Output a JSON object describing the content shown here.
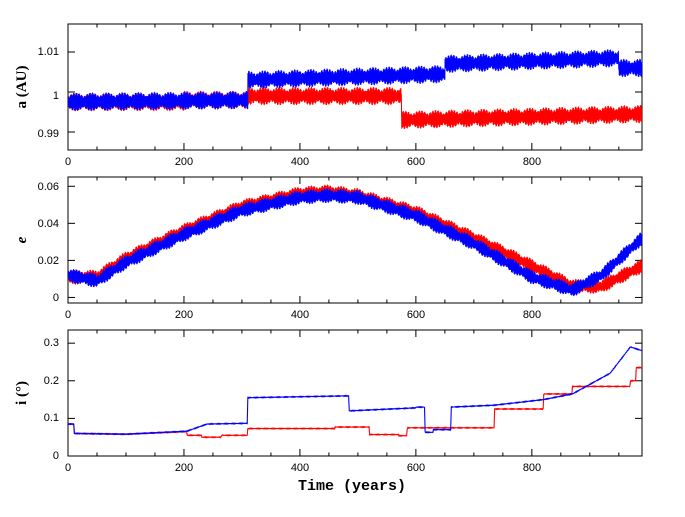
{
  "chart_data": [
    {
      "type": "line",
      "ylabel": "a (AU)",
      "ylim": [
        0.9855,
        1.017
      ],
      "xlim": [
        0,
        990
      ],
      "xticks": [
        "0",
        "200",
        "400",
        "600",
        "800"
      ],
      "yticks": [
        "0.99",
        "1",
        "1.01"
      ],
      "series": [
        {
          "name": "red",
          "color": "#ff0000",
          "x": [
            0,
            200,
            200,
            310,
            310,
            575,
            575,
            990
          ],
          "y": [
            0.9975,
            0.9975,
            0.998,
            0.998,
            0.999,
            0.999,
            0.993,
            0.9945
          ],
          "osc_amp": 0.0022
        },
        {
          "name": "blue",
          "color": "#0000ff",
          "x": [
            0,
            310,
            310,
            650,
            650,
            950,
            950,
            990
          ],
          "y": [
            0.9975,
            0.998,
            1.003,
            1.0045,
            1.007,
            1.0085,
            1.006,
            1.006
          ],
          "osc_amp": 0.0022
        }
      ]
    },
    {
      "type": "line",
      "ylabel": "e",
      "ylim": [
        -0.003,
        0.065
      ],
      "xlim": [
        0,
        990
      ],
      "xticks": [
        "0",
        "200",
        "400",
        "600",
        "800"
      ],
      "yticks": [
        "0",
        "0.02",
        "0.04",
        "0.06"
      ],
      "series": [
        {
          "name": "red",
          "color": "#ff0000",
          "x": [
            0,
            50,
            100,
            200,
            300,
            400,
            450,
            500,
            600,
            700,
            800,
            870,
            920,
            990
          ],
          "y": [
            0.011,
            0.011,
            0.021,
            0.036,
            0.049,
            0.056,
            0.057,
            0.055,
            0.046,
            0.032,
            0.017,
            0.006,
            0.006,
            0.017
          ],
          "osc_amp": 0.0038
        },
        {
          "name": "blue",
          "color": "#0000ff",
          "x": [
            0,
            50,
            100,
            200,
            300,
            400,
            450,
            500,
            600,
            700,
            800,
            870,
            920,
            990
          ],
          "y": [
            0.012,
            0.009,
            0.019,
            0.034,
            0.047,
            0.054,
            0.055,
            0.054,
            0.044,
            0.029,
            0.011,
            0.004,
            0.012,
            0.032
          ],
          "osc_amp": 0.0038
        }
      ]
    },
    {
      "type": "line",
      "ylabel": "i (°)",
      "xlabel": "Time (years)",
      "ylim": [
        0,
        0.335
      ],
      "xlim": [
        0,
        990
      ],
      "xticks": [
        "0",
        "200",
        "400",
        "600",
        "800"
      ],
      "yticks": [
        "0",
        "0.1",
        "0.2",
        "0.3"
      ],
      "series": [
        {
          "name": "red",
          "color": "#ff0000",
          "x": [
            0,
            10,
            10,
            100,
            205,
            205,
            230,
            230,
            265,
            265,
            310,
            310,
            460,
            460,
            520,
            520,
            570,
            570,
            585,
            585,
            735,
            735,
            820,
            820,
            870,
            870,
            970,
            970,
            980,
            980,
            990
          ],
          "y": [
            0.085,
            0.085,
            0.06,
            0.058,
            0.065,
            0.055,
            0.055,
            0.05,
            0.05,
            0.055,
            0.055,
            0.073,
            0.073,
            0.077,
            0.077,
            0.057,
            0.057,
            0.054,
            0.054,
            0.075,
            0.075,
            0.125,
            0.125,
            0.165,
            0.165,
            0.185,
            0.185,
            0.2,
            0.2,
            0.235,
            0.235
          ],
          "osc_amp": 0.0015
        },
        {
          "name": "blue",
          "color": "#0000ff",
          "x": [
            0,
            10,
            10,
            100,
            205,
            205,
            240,
            240,
            310,
            310,
            485,
            485,
            600,
            600,
            615,
            615,
            630,
            630,
            660,
            660,
            735,
            735,
            820,
            820,
            870,
            870,
            935,
            935,
            970,
            970,
            990
          ],
          "y": [
            0.085,
            0.085,
            0.06,
            0.058,
            0.066,
            0.066,
            0.085,
            0.085,
            0.087,
            0.155,
            0.16,
            0.12,
            0.128,
            0.13,
            0.13,
            0.063,
            0.063,
            0.07,
            0.07,
            0.13,
            0.135,
            0.135,
            0.15,
            0.15,
            0.165,
            0.165,
            0.22,
            0.22,
            0.29,
            0.29,
            0.28
          ],
          "osc_amp": 0.0015
        }
      ]
    }
  ]
}
